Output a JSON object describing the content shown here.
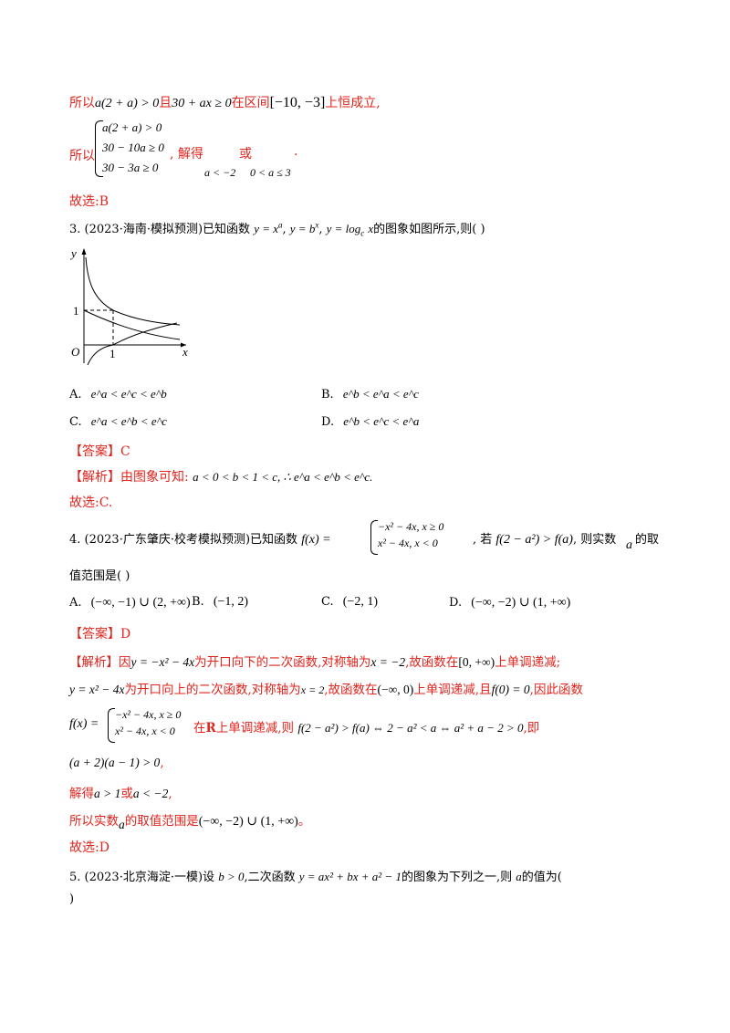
{
  "top": {
    "line1_prefix": "所以",
    "line1_math_a": "a(2 + a) > 0",
    "line1_and": "且",
    "line1_math_b": "30 + ax ≥ 0",
    "line1_mid": "在区间",
    "line1_interval": "[−10, −3]",
    "line1_suffix": "上恒成立,",
    "system_prefix": "所以",
    "system_rows": [
      "a(2 + a) > 0",
      "30 − 10a ≥ 0",
      "30 − 3a ≥ 0"
    ],
    "solve_label": ", 解得",
    "solve_or": "或",
    "solve_dot": ".",
    "sol1": "a < −2",
    "sol2": "0 < a ≤ 3",
    "answer": "故选:B"
  },
  "q3": {
    "number": "3.",
    "source": "(2023·海南·模拟预测)",
    "stem_a": "已知函数",
    "f1": "y = x",
    "f1_sup": "a",
    "f2": "y = b",
    "f2_sup": "x",
    "f3": "y = log",
    "f3_sub": "c",
    "f3_tail": "x",
    "stem_b": "的图象如图所示,则(    )",
    "graph": {
      "y_label": "y",
      "x_label": "x",
      "origin": "O",
      "tick_x": "1",
      "tick_y": "1"
    },
    "options": [
      {
        "label": "A.",
        "text": "e^a < e^c < e^b"
      },
      {
        "label": "B.",
        "text": "e^b < e^a < e^c"
      },
      {
        "label": "C.",
        "text": "e^a < e^b < e^c"
      },
      {
        "label": "D.",
        "text": "e^b < e^c < e^a"
      }
    ],
    "answer_tag": "【答案】C",
    "analysis_tag": "【解析】",
    "analysis_text": "由图象可知:",
    "analysis_math": "a < 0 < b < 1 < c, ∴ e^a < e^b < e^c.",
    "final": "故选:C."
  },
  "q4": {
    "number": "4.",
    "source": "(2023·广东肇庆·校考模拟预测)",
    "stem_a": "已知函数",
    "fx": "f(x) =",
    "piece1": "−x² − 4x, x ≥ 0",
    "piece2": "x² − 4x, x < 0",
    "stem_b": ", 若",
    "cond": "f(2 − a²) > f(a)",
    "stem_c": ", 则实数",
    "var_a": "a",
    "stem_d": "的取",
    "stem_line2": "值范围是(    )",
    "options": [
      {
        "label": "A.",
        "text": "(−∞, −1) ∪ (2, +∞)"
      },
      {
        "label": "B.",
        "text": "(−1, 2)"
      },
      {
        "label": "C.",
        "text": "(−2, 1)"
      },
      {
        "label": "D.",
        "text": "(−∞, −2) ∪ (1, +∞)"
      }
    ],
    "answer_tag": "【答案】D",
    "analysis_tag": "【解析】",
    "line1_a": "因",
    "line1_m1": "y = −x² − 4x",
    "line1_b": "为开口向下的二次函数,对称轴为",
    "line1_m2": "x = −2",
    "line1_c": ",故函数在",
    "line1_m3": "[0, +∞)",
    "line1_d": "上单调递减;",
    "line2_m1": "y = x² − 4x",
    "line2_b": "为开口向上的二次函数,对称轴为",
    "line2_m2": "x = 2",
    "line2_c": ",故函数在",
    "line2_m3": "(−∞, 0)",
    "line2_d": "上单调递减,且",
    "line2_m4": "f(0) = 0",
    "line2_e": ",因此函数",
    "line3_fx": "f(x) =",
    "line3_p1": "−x² − 4x, x ≥ 0",
    "line3_p2": "x² − 4x, x < 0",
    "line3_a": "在",
    "line3_R": "R",
    "line3_b": "上单调递减,则",
    "line3_m": "f(2 − a²) > f(a) ⇔ 2 − a² < a ⇔ a² + a − 2 > 0",
    "line3_c": ",即",
    "line4_m": "(a + 2)(a − 1) > 0",
    "line4_c": ",",
    "line5_a": "解得",
    "line5_m1": "a > 1",
    "line5_b": "或",
    "line5_m2": "a < −2",
    "line5_c": ",",
    "line6_a": "所以实数",
    "line6_var": "a",
    "line6_b": "的取值范围是",
    "line6_m": "(−∞, −2) ∪ (1, +∞)",
    "line6_c": "。",
    "final": "故选:D"
  },
  "q5": {
    "number": "5.",
    "source": "(2023·北京海淀·一模)",
    "stem_a": "设",
    "m1": "b > 0",
    "stem_b": ",二次函数",
    "m2": "y = ax² + bx + a² − 1",
    "stem_c": "的图象为下列之一,则",
    "var_a": "a",
    "stem_d": "的值为(",
    "line2": ")"
  }
}
